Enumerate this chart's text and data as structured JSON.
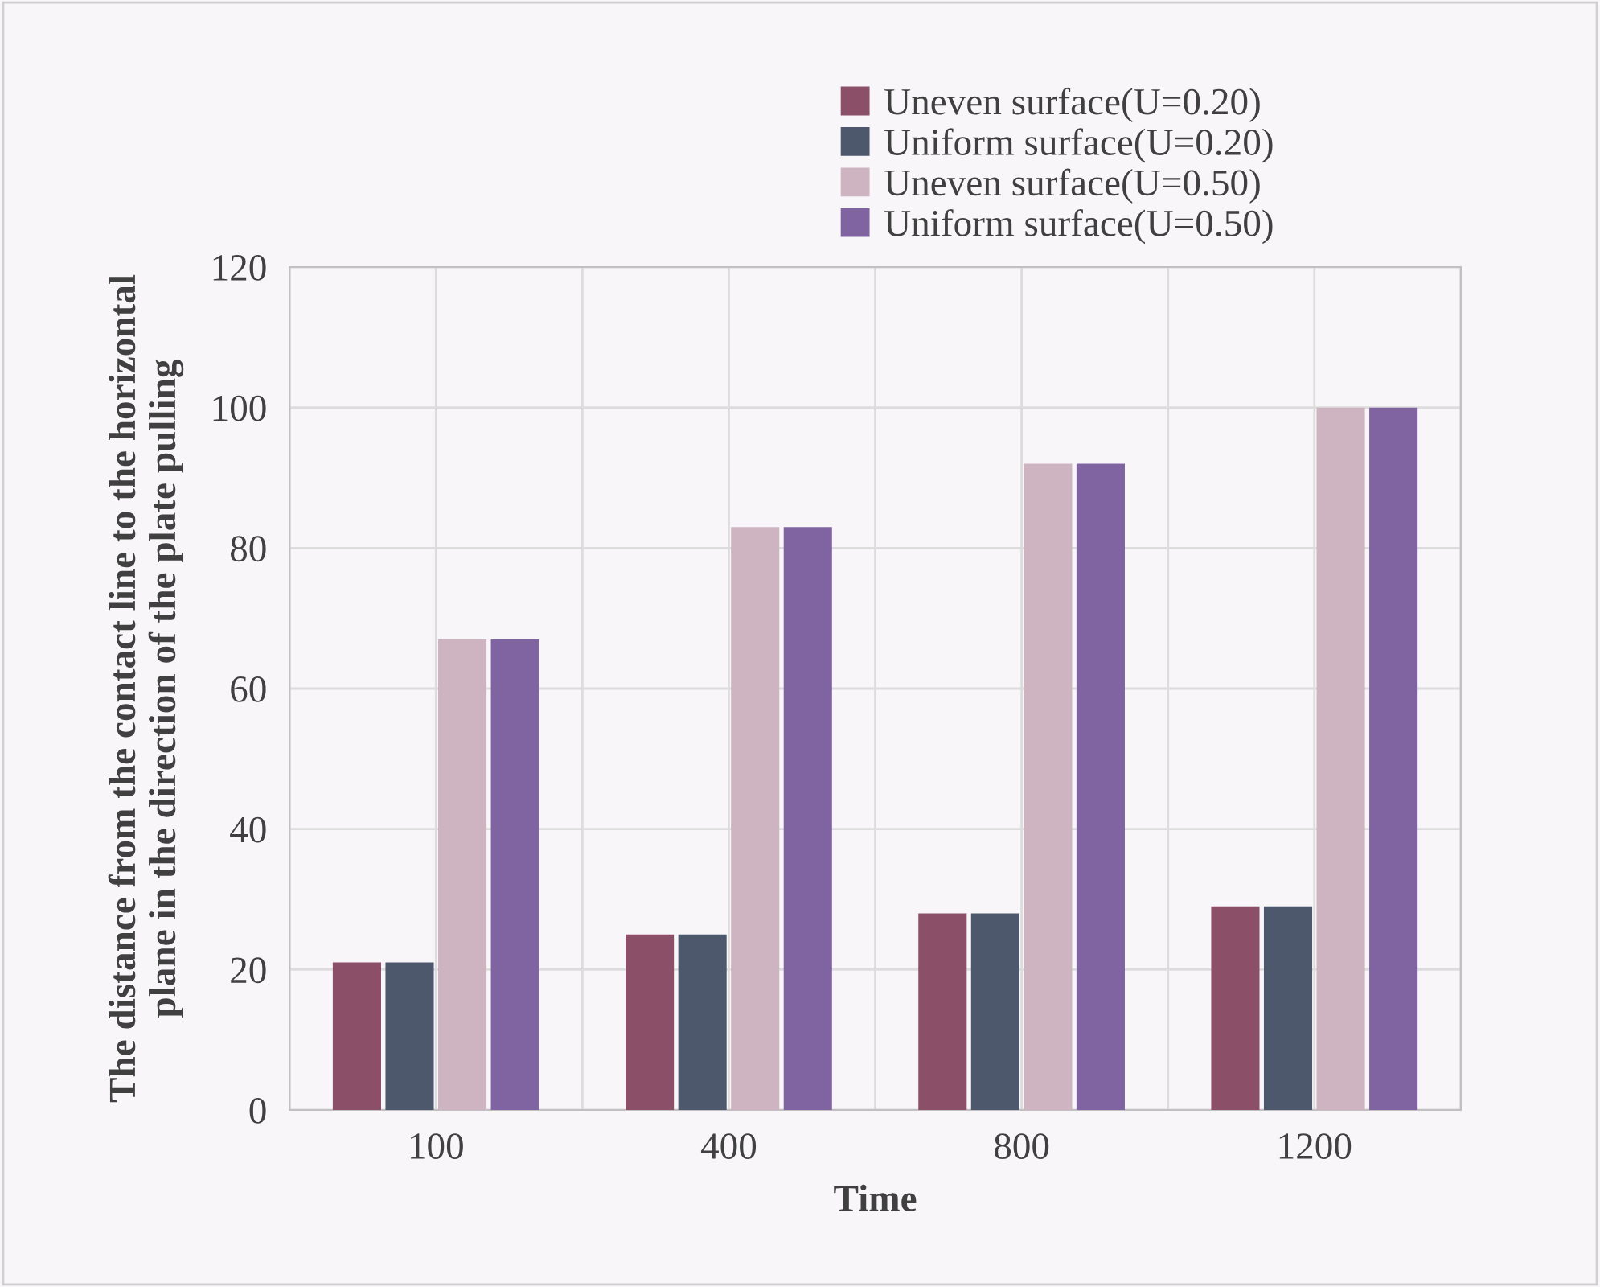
{
  "chart_data": {
    "type": "bar",
    "xlabel": "Time",
    "ylabel": "The distance from the contact line to the horizontal\nplane in the direction of the plate pulling",
    "categories": [
      "100",
      "400",
      "800",
      "1200"
    ],
    "series": [
      {
        "name": "Uneven surface(U=0.20)",
        "color": "#8b4f67",
        "values": [
          21,
          25,
          28,
          29
        ]
      },
      {
        "name": "Uniform surface(U=0.20)",
        "color": "#4e586d",
        "values": [
          21,
          25,
          28,
          29
        ]
      },
      {
        "name": "Uneven surface(U=0.50)",
        "color": "#cdb4c0",
        "values": [
          67,
          83,
          92,
          100
        ]
      },
      {
        "name": "Uniform surface(U=0.50)",
        "color": "#8064a2",
        "values": [
          67,
          83,
          92,
          100
        ]
      }
    ],
    "ylim": [
      0,
      120
    ],
    "yticks": [
      0,
      20,
      40,
      60,
      80,
      100,
      120
    ],
    "grid": true,
    "legend": "top right"
  }
}
